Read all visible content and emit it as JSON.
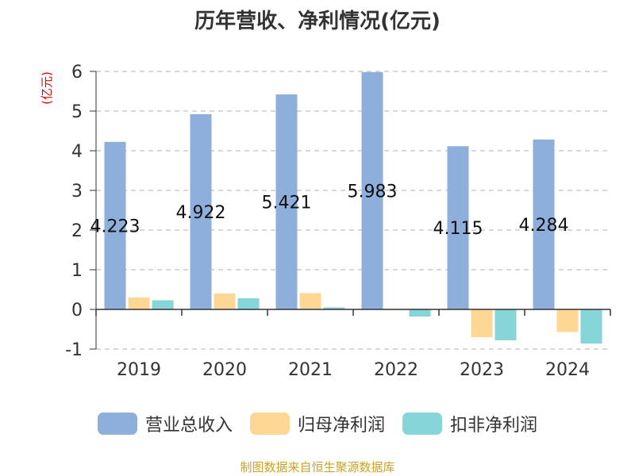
{
  "chart_data": {
    "type": "bar",
    "title": "历年营收、净利情况(亿元)",
    "ylabel": "(亿元)",
    "categories": [
      "2019",
      "2020",
      "2021",
      "2022",
      "2023",
      "2024"
    ],
    "ylim": [
      -1,
      6
    ],
    "yticks": [
      -1,
      0,
      1,
      2,
      3,
      4,
      5,
      6
    ],
    "grid": true,
    "legend_position": "bottom",
    "series": [
      {
        "name": "营业总收入",
        "color": "#8eaedb",
        "values": [
          4.223,
          4.922,
          5.421,
          5.983,
          4.115,
          4.284
        ],
        "data_labels": [
          "4.223",
          "4.922",
          "5.421",
          "5.983",
          "4.115",
          "4.284"
        ]
      },
      {
        "name": "归母净利润",
        "color": "#ffd795",
        "values": [
          0.3,
          0.4,
          0.41,
          -0.02,
          -0.7,
          -0.57
        ]
      },
      {
        "name": "扣非净利润",
        "color": "#86d5d8",
        "values": [
          0.23,
          0.28,
          0.05,
          -0.18,
          -0.78,
          -0.86
        ]
      }
    ]
  },
  "source_note": "制图数据来自恒生聚源数据库"
}
